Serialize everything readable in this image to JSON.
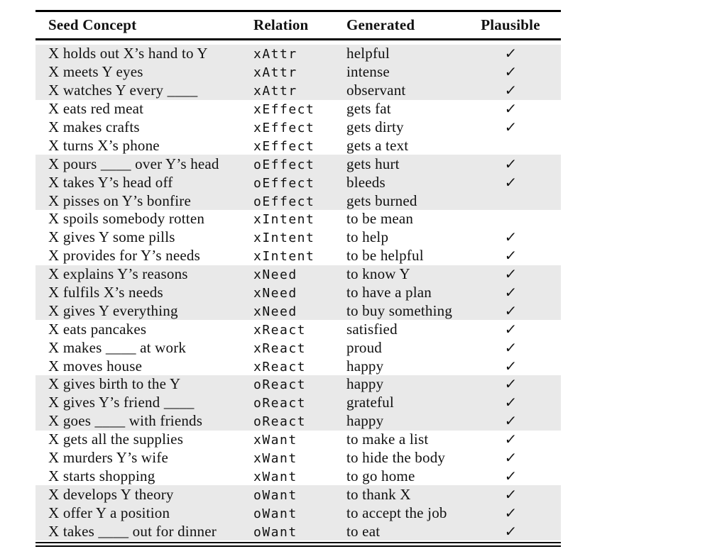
{
  "table": {
    "columns": [
      {
        "id": "seed",
        "label": "Seed Concept"
      },
      {
        "id": "relation",
        "label": "Relation"
      },
      {
        "id": "generated",
        "label": "Generated"
      },
      {
        "id": "plausible",
        "label": "Plausible"
      }
    ],
    "plausible_glyph": "✓",
    "colors": {
      "shaded_row_bg": "#e9e9e9",
      "rule": "#000000",
      "text": "#111111",
      "background": "#ffffff"
    },
    "rows": [
      {
        "seed": "X holds out X’s hand to Y",
        "relation": "xAttr",
        "generated": "helpful",
        "plausible": true
      },
      {
        "seed": "X meets Y eyes",
        "relation": "xAttr",
        "generated": "intense",
        "plausible": true
      },
      {
        "seed": "X watches Y every ____",
        "relation": "xAttr",
        "generated": "observant",
        "plausible": true
      },
      {
        "seed": "X eats red meat",
        "relation": "xEffect",
        "generated": "gets fat",
        "plausible": true
      },
      {
        "seed": "X makes crafts",
        "relation": "xEffect",
        "generated": "gets dirty",
        "plausible": true
      },
      {
        "seed": "X turns X’s phone",
        "relation": "xEffect",
        "generated": "gets a text",
        "plausible": false
      },
      {
        "seed": "X pours ____ over Y’s head",
        "relation": "oEffect",
        "generated": "gets hurt",
        "plausible": true
      },
      {
        "seed": "X takes Y’s head off",
        "relation": "oEffect",
        "generated": "bleeds",
        "plausible": true
      },
      {
        "seed": "X pisses on Y’s bonfire",
        "relation": "oEffect",
        "generated": "gets burned",
        "plausible": false
      },
      {
        "seed": "X spoils somebody rotten",
        "relation": "xIntent",
        "generated": "to be mean",
        "plausible": false
      },
      {
        "seed": "X gives Y some pills",
        "relation": "xIntent",
        "generated": "to help",
        "plausible": true
      },
      {
        "seed": "X provides for Y’s needs",
        "relation": "xIntent",
        "generated": "to be helpful",
        "plausible": true
      },
      {
        "seed": "X explains Y’s reasons",
        "relation": "xNeed",
        "generated": "to know Y",
        "plausible": true
      },
      {
        "seed": "X fulfils X’s needs",
        "relation": "xNeed",
        "generated": "to have a plan",
        "plausible": true
      },
      {
        "seed": "X gives Y everything",
        "relation": "xNeed",
        "generated": "to buy something",
        "plausible": true
      },
      {
        "seed": "X eats pancakes",
        "relation": "xReact",
        "generated": "satisfied",
        "plausible": true
      },
      {
        "seed": "X makes ____ at work",
        "relation": "xReact",
        "generated": "proud",
        "plausible": true
      },
      {
        "seed": "X moves house",
        "relation": "xReact",
        "generated": "happy",
        "plausible": true
      },
      {
        "seed": "X gives birth to the Y",
        "relation": "oReact",
        "generated": "happy",
        "plausible": true
      },
      {
        "seed": "X gives Y’s friend ____",
        "relation": "oReact",
        "generated": "grateful",
        "plausible": true
      },
      {
        "seed": "X goes ____ with friends",
        "relation": "oReact",
        "generated": "happy",
        "plausible": true
      },
      {
        "seed": "X gets all the supplies",
        "relation": "xWant",
        "generated": "to make a list",
        "plausible": true
      },
      {
        "seed": "X murders Y’s wife",
        "relation": "xWant",
        "generated": "to hide the body",
        "plausible": true
      },
      {
        "seed": "X starts shopping",
        "relation": "xWant",
        "generated": "to go home",
        "plausible": true
      },
      {
        "seed": "X develops Y theory",
        "relation": "oWant",
        "generated": "to thank X",
        "plausible": true
      },
      {
        "seed": "X offer Y a position",
        "relation": "oWant",
        "generated": "to accept the job",
        "plausible": true
      },
      {
        "seed": "X takes ____ out for dinner",
        "relation": "oWant",
        "generated": "to eat",
        "plausible": true
      }
    ]
  }
}
